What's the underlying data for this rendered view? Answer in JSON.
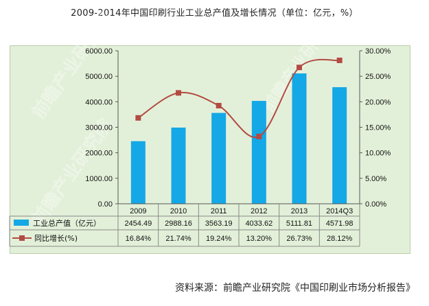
{
  "page": {
    "title": "2009-2014年中国印刷行业工业总产值及增长情况（单位：亿元，%）",
    "source": "资料来源：前瞻产业研究院《中国印刷业市场分析报告》",
    "watermark": "前瞻产业研究院"
  },
  "chart_data": {
    "type": "bar",
    "categories": [
      "2009",
      "2010",
      "2011",
      "2012",
      "2013",
      "2014Q3"
    ],
    "series": [
      {
        "name": "工业总产值（亿元）",
        "type": "bar",
        "axis": "left",
        "color": "#14a8e6",
        "values": [
          2454.49,
          2988.16,
          3563.19,
          4033.62,
          5111.81,
          4571.98
        ],
        "labels": [
          "2454.49",
          "2988.16",
          "3563.19",
          "4033.62",
          "5111.81",
          "4571.98"
        ]
      },
      {
        "name": "同比增长(%)",
        "type": "line",
        "axis": "right",
        "color": "#b24b43",
        "values": [
          16.84,
          21.74,
          19.24,
          13.2,
          26.73,
          28.12
        ],
        "labels": [
          "16.84%",
          "21.74%",
          "19.24%",
          "13.20%",
          "26.73%",
          "28.12%"
        ]
      }
    ],
    "y_left": {
      "min": 0,
      "max": 6000,
      "ticks": [
        "0.00",
        "1000.00",
        "2000.00",
        "3000.00",
        "4000.00",
        "5000.00",
        "6000.00"
      ]
    },
    "y_right": {
      "min": 0,
      "max": 30,
      "ticks": [
        "0.00%",
        "5.00%",
        "10.00%",
        "15.00%",
        "20.00%",
        "25.00%",
        "30.00%"
      ]
    },
    "grid": false,
    "legend": "data table below chart"
  }
}
